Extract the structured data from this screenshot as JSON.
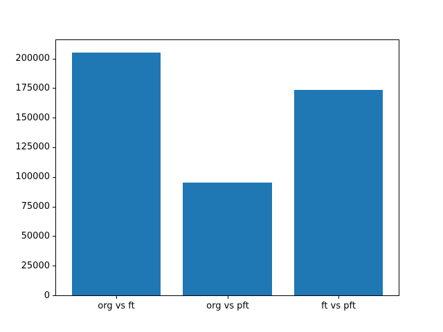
{
  "chart_data": {
    "type": "bar",
    "title": "",
    "xlabel": "",
    "ylabel": "",
    "categories": [
      "org vs ft",
      "org vs pft",
      "ft vs pft"
    ],
    "values": [
      205000,
      95000,
      173500
    ],
    "yticks": [
      0,
      25000,
      50000,
      75000,
      100000,
      125000,
      150000,
      175000,
      200000
    ],
    "ytick_labels": [
      "0",
      "25000",
      "50000",
      "75000",
      "100000",
      "125000",
      "150000",
      "175000",
      "200000"
    ],
    "ylim": [
      0,
      215500
    ],
    "xlim": [
      -0.54,
      2.54
    ],
    "bar_width_units": 0.8,
    "bar_color": "#1f77b4",
    "spine_color": "#000000",
    "background_color": "#ffffff",
    "grid": false,
    "legend": "none"
  }
}
